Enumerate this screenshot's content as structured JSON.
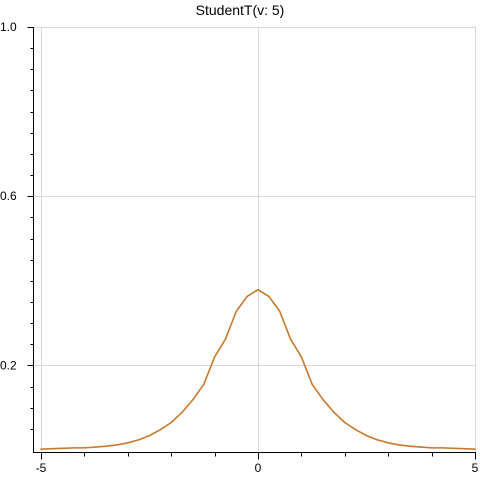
{
  "chart_data": {
    "type": "line",
    "title": "StudentT(v: 5)",
    "xlabel": "",
    "ylabel": "",
    "xlim": [
      -5,
      5
    ],
    "ylim": [
      0,
      1.0
    ],
    "x_ticks": [
      -5,
      0,
      5
    ],
    "x_tick_labels": [
      "-5",
      "0",
      "5"
    ],
    "y_ticks": [
      0.2,
      0.6,
      1.0
    ],
    "y_tick_labels": [
      "0.2",
      "0.6",
      "1.0"
    ],
    "grid": true,
    "legend": "none",
    "series": [
      {
        "color": "#c87a2a",
        "x": [
          -5.0,
          -4.75,
          -4.5,
          -4.25,
          -4.0,
          -3.75,
          -3.5,
          -3.25,
          -3.0,
          -2.75,
          -2.5,
          -2.25,
          -2.0,
          -1.75,
          -1.5,
          -1.25,
          -1.0,
          -0.75,
          -0.5,
          -0.25,
          0.0,
          0.25,
          0.5,
          0.75,
          1.0,
          1.25,
          1.5,
          1.75,
          2.0,
          2.25,
          2.5,
          2.75,
          3.0,
          3.25,
          3.5,
          3.75,
          4.0,
          4.25,
          4.5,
          4.75,
          5.0
        ],
        "values": [
          0.002,
          0.003,
          0.004,
          0.005,
          0.005,
          0.007,
          0.009,
          0.012,
          0.017,
          0.024,
          0.034,
          0.048,
          0.065,
          0.089,
          0.119,
          0.155,
          0.22,
          0.262,
          0.328,
          0.363,
          0.379,
          0.363,
          0.328,
          0.262,
          0.22,
          0.155,
          0.119,
          0.089,
          0.065,
          0.048,
          0.034,
          0.024,
          0.017,
          0.012,
          0.009,
          0.007,
          0.005,
          0.005,
          0.004,
          0.003,
          0.002
        ]
      }
    ]
  }
}
